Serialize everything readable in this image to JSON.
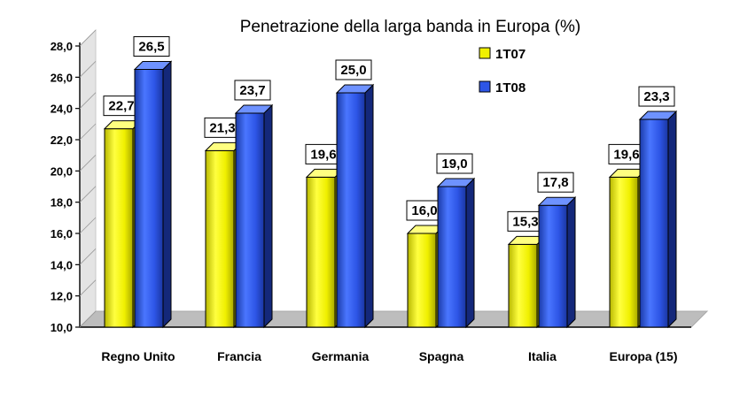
{
  "chart_data": {
    "type": "bar",
    "title": "Penetrazione della larga banda in Europa (%)",
    "xlabel": "",
    "ylabel": "",
    "categories": [
      "Regno Unito",
      "Francia",
      "Germania",
      "Spagna",
      "Italia",
      "Europa (15)"
    ],
    "series": [
      {
        "name": "1T07",
        "values": [
          22.7,
          21.3,
          19.6,
          16.0,
          15.3,
          19.6
        ],
        "labels": [
          "22,7",
          "21,3",
          "19,6",
          "16,0",
          "15,3",
          "19,6"
        ],
        "color": "#f0f000"
      },
      {
        "name": "1T08",
        "values": [
          26.5,
          23.7,
          25.0,
          19.0,
          17.8,
          23.3
        ],
        "labels": [
          "26,5",
          "23,7",
          "25,0",
          "19,0",
          "17,8",
          "23,3"
        ],
        "color": "#2d55e6"
      }
    ],
    "ylim": [
      10,
      28
    ],
    "yticks": [
      "10,0",
      "12,0",
      "14,0",
      "16,0",
      "18,0",
      "20,0",
      "22,0",
      "24,0",
      "26,0",
      "28,0"
    ],
    "ytick_step": 2,
    "grid": false,
    "style": "3d",
    "legend_position": "top-right"
  }
}
